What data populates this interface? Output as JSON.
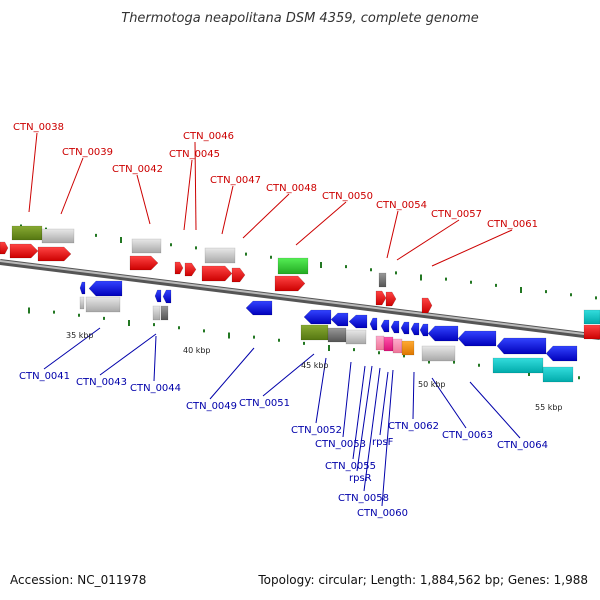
{
  "title": "Thermotoga neapolitana DSM 4359, complete genome",
  "footer": {
    "accession": "Accession: NC_011978",
    "summary": "Topology: circular; Length: 1,884,562 bp; Genes: 1,988"
  },
  "colors": {
    "label_top": "#cc0000",
    "label_bottom": "#0000aa",
    "backbone": "#888888",
    "tick": "#227722"
  },
  "scale_labels": [
    "35 kbp",
    "40 kbp",
    "45 kbp",
    "50 kbp",
    "55 kbp"
  ],
  "top_labels": [
    "CTN_0038",
    "CTN_0039",
    "CTN_0042",
    "CTN_0046",
    "CTN_0045",
    "CTN_0047",
    "CTN_0048",
    "CTN_0050",
    "CTN_0054",
    "CTN_0057",
    "CTN_0061"
  ],
  "bottom_labels": [
    "CTN_0041",
    "CTN_0043",
    "CTN_0044",
    "CTN_0049",
    "CTN_0051",
    "CTN_0052",
    "CTN_0053",
    "CTN_0055",
    "rpsR",
    "CTN_0058",
    "CTN_0060",
    "rpsF",
    "CTN_0062",
    "CTN_0063",
    "CTN_0064"
  ]
}
